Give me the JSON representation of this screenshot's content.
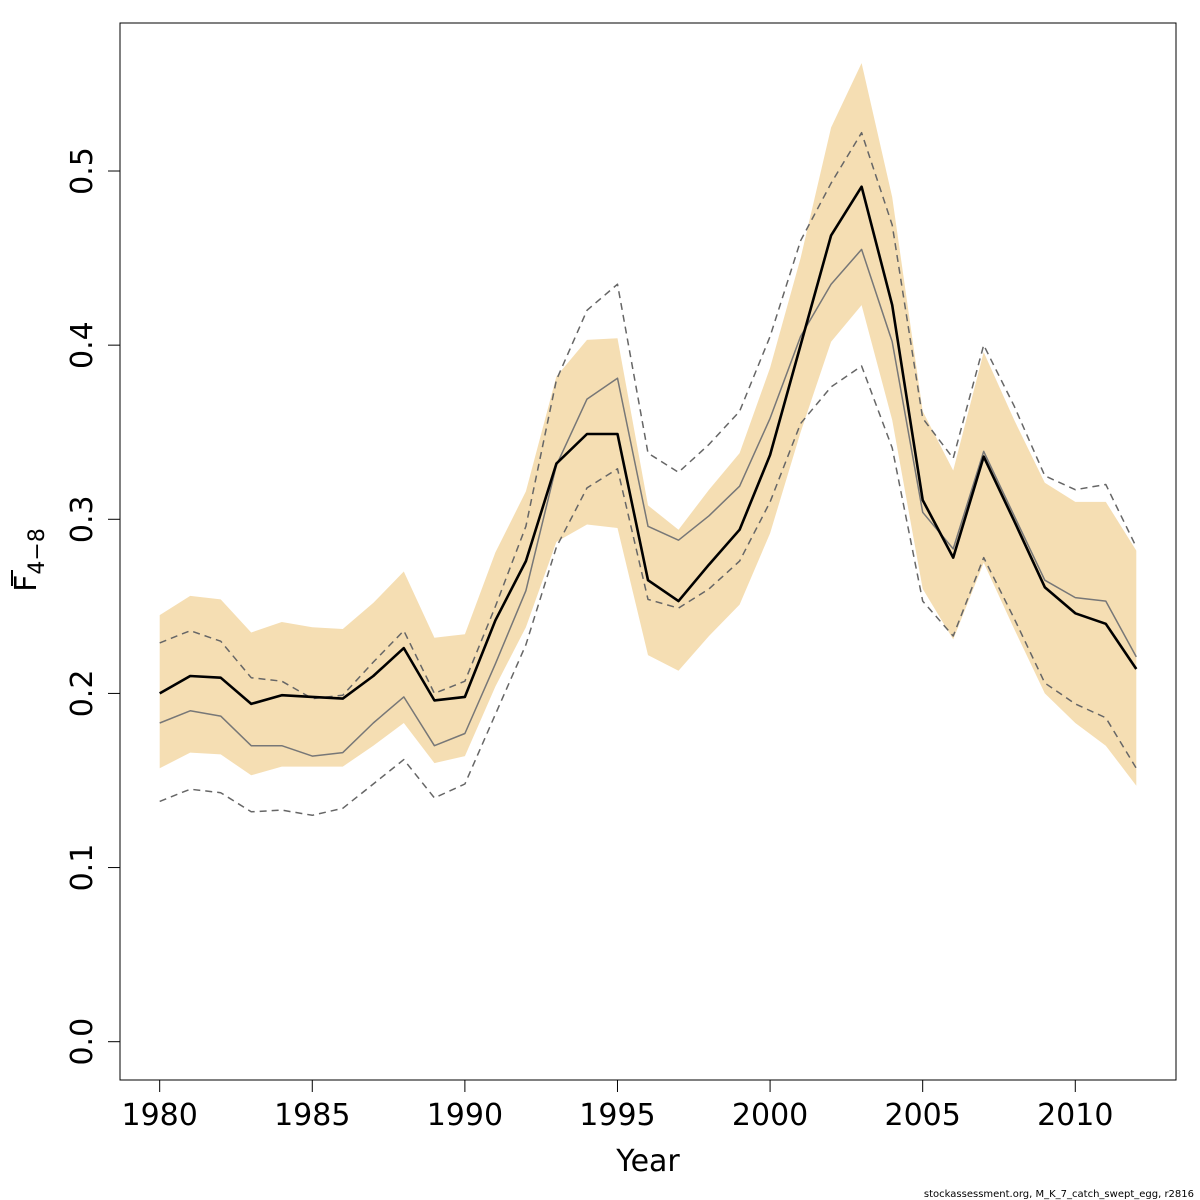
{
  "chart_data": {
    "type": "line",
    "xlabel": "Year",
    "ylabel_main": "F",
    "ylabel_sub": "4−8",
    "xlim": [
      1978.7,
      2013.3
    ],
    "ylim": [
      -0.022,
      0.585
    ],
    "x_ticks": [
      1980,
      1985,
      1990,
      1995,
      2000,
      2005,
      2010
    ],
    "y_ticks": [
      0.0,
      0.1,
      0.2,
      0.3,
      0.4,
      0.5
    ],
    "x_tick_labels": [
      "1980",
      "1985",
      "1990",
      "1995",
      "2000",
      "2005",
      "2010"
    ],
    "y_tick_labels": [
      "0.0",
      "0.1",
      "0.2",
      "0.3",
      "0.4",
      "0.5"
    ],
    "grid": false,
    "x": [
      1980,
      1981,
      1982,
      1983,
      1984,
      1985,
      1986,
      1987,
      1988,
      1989,
      1990,
      1991,
      1992,
      1993,
      1994,
      1995,
      1996,
      1997,
      1998,
      1999,
      2000,
      2001,
      2002,
      2003,
      2004,
      2005,
      2006,
      2007,
      2008,
      2009,
      2010,
      2011,
      2012
    ],
    "band": {
      "color": "#F5DEB3",
      "upper": [
        0.245,
        0.256,
        0.254,
        0.235,
        0.241,
        0.238,
        0.237,
        0.252,
        0.27,
        0.232,
        0.234,
        0.281,
        0.316,
        0.382,
        0.403,
        0.404,
        0.308,
        0.294,
        0.317,
        0.338,
        0.387,
        0.45,
        0.525,
        0.562,
        0.485,
        0.362,
        0.328,
        0.396,
        0.357,
        0.321,
        0.31,
        0.31,
        0.282
      ],
      "lower": [
        0.157,
        0.166,
        0.165,
        0.153,
        0.158,
        0.158,
        0.158,
        0.17,
        0.183,
        0.16,
        0.164,
        0.204,
        0.238,
        0.287,
        0.297,
        0.295,
        0.222,
        0.213,
        0.233,
        0.251,
        0.292,
        0.35,
        0.402,
        0.423,
        0.357,
        0.26,
        0.231,
        0.275,
        0.237,
        0.2,
        0.183,
        0.17,
        0.147
      ]
    },
    "series": [
      {
        "color": "#000000",
        "style": "solid",
        "values": [
          0.2,
          0.21,
          0.209,
          0.194,
          0.199,
          0.198,
          0.197,
          0.21,
          0.226,
          0.196,
          0.198,
          0.242,
          0.276,
          0.332,
          0.349,
          0.349,
          0.265,
          0.253,
          0.274,
          0.294,
          0.337,
          0.4,
          0.463,
          0.491,
          0.423,
          0.311,
          0.278,
          0.336,
          0.299,
          0.261,
          0.246,
          0.24,
          0.214
        ]
      },
      {
        "color": "#777777",
        "style": "solid",
        "values": [
          0.183,
          0.19,
          0.187,
          0.17,
          0.17,
          0.164,
          0.166,
          0.183,
          0.198,
          0.17,
          0.177,
          0.217,
          0.259,
          0.331,
          0.369,
          0.381,
          0.296,
          0.288,
          0.302,
          0.319,
          0.358,
          0.405,
          0.435,
          0.455,
          0.402,
          0.304,
          0.283,
          0.339,
          0.302,
          0.265,
          0.255,
          0.253,
          0.221
        ]
      },
      {
        "color": "#666666",
        "style": "dashed",
        "values": [
          0.229,
          0.236,
          0.23,
          0.209,
          0.207,
          0.197,
          0.199,
          0.218,
          0.236,
          0.2,
          0.207,
          0.25,
          0.296,
          0.38,
          0.42,
          0.435,
          0.338,
          0.327,
          0.343,
          0.362,
          0.405,
          0.46,
          0.493,
          0.522,
          0.469,
          0.358,
          0.335,
          0.4,
          0.365,
          0.325,
          0.317,
          0.32,
          0.284
        ]
      },
      {
        "color": "#666666",
        "style": "dashed",
        "values": [
          0.138,
          0.145,
          0.143,
          0.132,
          0.133,
          0.13,
          0.134,
          0.148,
          0.162,
          0.14,
          0.148,
          0.188,
          0.228,
          0.284,
          0.318,
          0.329,
          0.254,
          0.249,
          0.26,
          0.276,
          0.31,
          0.355,
          0.376,
          0.388,
          0.341,
          0.253,
          0.233,
          0.278,
          0.243,
          0.206,
          0.194,
          0.186,
          0.157
        ]
      }
    ]
  },
  "footer": "stockassessment.org, M_K_7_catch_swept_egg, r2816"
}
